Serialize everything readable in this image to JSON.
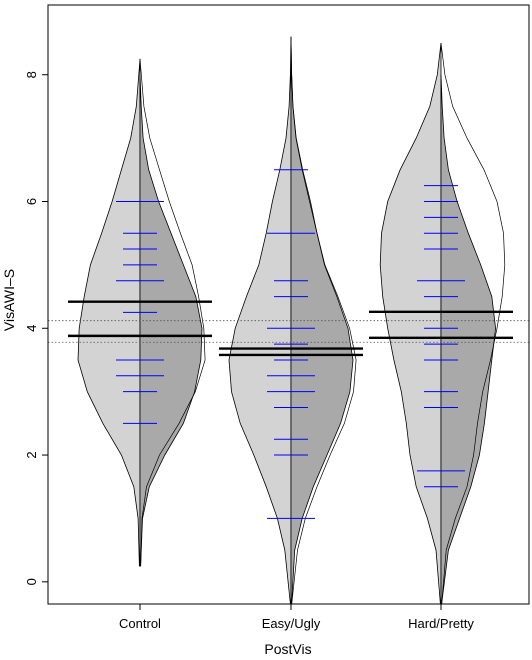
{
  "chart_data": {
    "type": "beanplot",
    "xlabel": "PostVis",
    "ylabel": "VisAWI–S",
    "categories": [
      "Control",
      "Easy/Ugly",
      "Hard/Pretty"
    ],
    "ylim": [
      -0.35,
      9.1
    ],
    "y_ticks": [
      0,
      2,
      4,
      6,
      8
    ],
    "reference_lines": [
      4.12,
      3.78
    ],
    "grid": false,
    "legend": "none",
    "colors": {
      "bean_fill": "#d3d3d3",
      "bean_dark": "#a9a9a9",
      "bean_outline": "#000000",
      "obs_line": "#0000ff",
      "mean_line": "#000000",
      "ref_line": "#555555"
    },
    "groups": [
      {
        "category": "Control",
        "means": [
          4.42,
          3.88
        ],
        "observations": [
          {
            "value": 6.0,
            "count": 2
          },
          {
            "value": 5.5,
            "count": 1
          },
          {
            "value": 5.25,
            "count": 1
          },
          {
            "value": 5.0,
            "count": 1
          },
          {
            "value": 4.75,
            "count": 2
          },
          {
            "value": 4.25,
            "count": 1
          },
          {
            "value": 3.5,
            "count": 2
          },
          {
            "value": 3.25,
            "count": 2
          },
          {
            "value": 3.0,
            "count": 1
          },
          {
            "value": 2.5,
            "count": 1
          }
        ],
        "left_density": [
          [
            0.25,
            0.01
          ],
          [
            1.0,
            0.03
          ],
          [
            1.5,
            0.1
          ],
          [
            2.0,
            0.3
          ],
          [
            2.5,
            0.6
          ],
          [
            3.0,
            0.85
          ],
          [
            3.5,
            1.0
          ],
          [
            4.0,
            0.98
          ],
          [
            4.5,
            0.9
          ],
          [
            5.0,
            0.8
          ],
          [
            5.5,
            0.62
          ],
          [
            6.0,
            0.45
          ],
          [
            6.5,
            0.3
          ],
          [
            7.0,
            0.15
          ],
          [
            7.5,
            0.06
          ],
          [
            8.0,
            0.02
          ],
          [
            8.25,
            0.0
          ]
        ],
        "right_density": [
          [
            0.25,
            0.01
          ],
          [
            1.0,
            0.04
          ],
          [
            1.5,
            0.15
          ],
          [
            2.0,
            0.4
          ],
          [
            2.5,
            0.7
          ],
          [
            3.0,
            0.88
          ],
          [
            3.5,
            0.98
          ],
          [
            4.0,
            1.0
          ],
          [
            4.5,
            0.9
          ],
          [
            5.0,
            0.7
          ],
          [
            5.5,
            0.5
          ],
          [
            6.0,
            0.3
          ],
          [
            6.5,
            0.14
          ],
          [
            7.0,
            0.05
          ],
          [
            7.5,
            0.02
          ],
          [
            8.0,
            0.0
          ]
        ]
      },
      {
        "category": "Easy/Ugly",
        "means": [
          3.68,
          3.58
        ],
        "observations": [
          {
            "value": 6.5,
            "count": 1
          },
          {
            "value": 5.5,
            "count": 2
          },
          {
            "value": 4.75,
            "count": 1
          },
          {
            "value": 4.5,
            "count": 1
          },
          {
            "value": 4.0,
            "count": 2
          },
          {
            "value": 3.75,
            "count": 1
          },
          {
            "value": 3.5,
            "count": 1
          },
          {
            "value": 3.25,
            "count": 2
          },
          {
            "value": 3.0,
            "count": 2
          },
          {
            "value": 2.75,
            "count": 1
          },
          {
            "value": 2.25,
            "count": 1
          },
          {
            "value": 2.0,
            "count": 1
          },
          {
            "value": 1.0,
            "count": 2
          }
        ],
        "left_density": [
          [
            -0.35,
            0.01
          ],
          [
            0.5,
            0.1
          ],
          [
            1.0,
            0.22
          ],
          [
            1.5,
            0.4
          ],
          [
            2.0,
            0.6
          ],
          [
            2.5,
            0.82
          ],
          [
            3.0,
            0.96
          ],
          [
            3.5,
            1.0
          ],
          [
            4.0,
            0.9
          ],
          [
            4.5,
            0.72
          ],
          [
            5.0,
            0.52
          ],
          [
            5.5,
            0.4
          ],
          [
            6.0,
            0.3
          ],
          [
            6.5,
            0.18
          ],
          [
            7.0,
            0.08
          ],
          [
            7.5,
            0.03
          ],
          [
            8.0,
            0.01
          ],
          [
            8.6,
            0.0
          ]
        ],
        "right_density": [
          [
            -0.35,
            0.01
          ],
          [
            0.5,
            0.06
          ],
          [
            1.0,
            0.18
          ],
          [
            1.5,
            0.36
          ],
          [
            2.0,
            0.58
          ],
          [
            2.5,
            0.8
          ],
          [
            3.0,
            0.95
          ],
          [
            3.5,
            1.0
          ],
          [
            4.0,
            0.92
          ],
          [
            4.5,
            0.74
          ],
          [
            5.0,
            0.54
          ],
          [
            5.5,
            0.42
          ],
          [
            6.0,
            0.3
          ],
          [
            6.5,
            0.18
          ],
          [
            7.0,
            0.08
          ],
          [
            7.5,
            0.03
          ],
          [
            8.0,
            0.01
          ],
          [
            8.6,
            0.0
          ]
        ]
      },
      {
        "category": "Hard/Pretty",
        "means": [
          4.26,
          3.85
        ],
        "observations": [
          {
            "value": 6.25,
            "count": 1
          },
          {
            "value": 6.0,
            "count": 1
          },
          {
            "value": 5.75,
            "count": 1
          },
          {
            "value": 5.5,
            "count": 1
          },
          {
            "value": 5.25,
            "count": 1
          },
          {
            "value": 4.75,
            "count": 2
          },
          {
            "value": 4.5,
            "count": 1
          },
          {
            "value": 4.0,
            "count": 1
          },
          {
            "value": 3.75,
            "count": 1
          },
          {
            "value": 3.5,
            "count": 1
          },
          {
            "value": 3.0,
            "count": 1
          },
          {
            "value": 2.75,
            "count": 1
          },
          {
            "value": 1.75,
            "count": 2
          },
          {
            "value": 1.5,
            "count": 1
          }
        ],
        "left_density": [
          [
            -0.35,
            0.01
          ],
          [
            0.5,
            0.08
          ],
          [
            1.0,
            0.22
          ],
          [
            1.5,
            0.4
          ],
          [
            2.0,
            0.5
          ],
          [
            2.5,
            0.56
          ],
          [
            3.0,
            0.64
          ],
          [
            3.5,
            0.76
          ],
          [
            4.0,
            0.86
          ],
          [
            4.5,
            0.94
          ],
          [
            5.0,
            0.98
          ],
          [
            5.5,
            0.96
          ],
          [
            6.0,
            0.86
          ],
          [
            6.5,
            0.66
          ],
          [
            7.0,
            0.4
          ],
          [
            7.5,
            0.18
          ],
          [
            8.0,
            0.06
          ],
          [
            8.5,
            0.0
          ]
        ],
        "right_density": [
          [
            -0.35,
            0.01
          ],
          [
            0.5,
            0.12
          ],
          [
            1.0,
            0.3
          ],
          [
            1.5,
            0.48
          ],
          [
            2.0,
            0.62
          ],
          [
            2.5,
            0.7
          ],
          [
            3.0,
            0.76
          ],
          [
            3.5,
            0.82
          ],
          [
            4.0,
            0.88
          ],
          [
            4.5,
            0.82
          ],
          [
            5.0,
            0.64
          ],
          [
            5.5,
            0.44
          ],
          [
            6.0,
            0.26
          ],
          [
            6.5,
            0.12
          ],
          [
            7.0,
            0.05
          ],
          [
            7.5,
            0.02
          ],
          [
            8.0,
            0.0
          ]
        ]
      }
    ]
  }
}
